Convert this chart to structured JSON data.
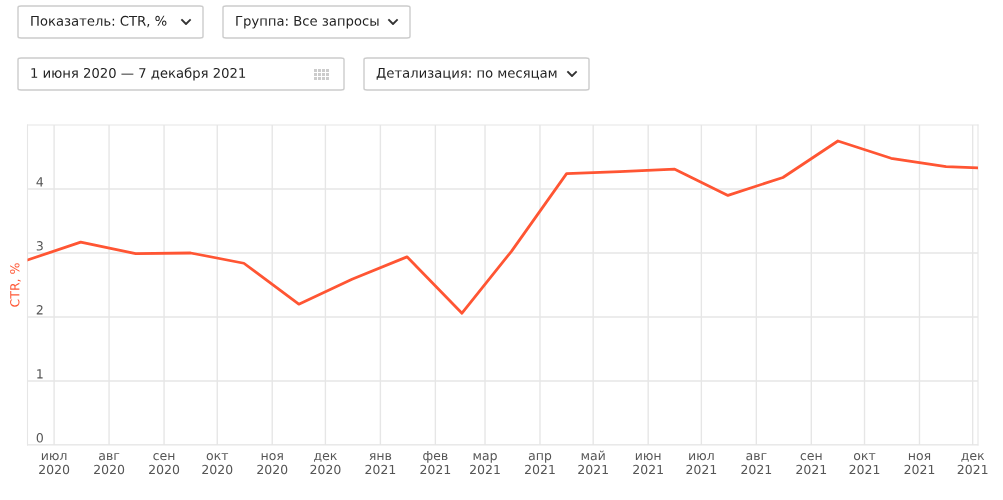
{
  "chart_data": {
    "type": "line",
    "annotations": [
      "Показатель: CTR, %",
      "Группа: Все запросы",
      "1 июня 2020 — 7 декабря 2021",
      "Детализация: по месяцам"
    ],
    "ylabel": "CTR, %",
    "x": [
      "2020-06-16",
      "2020-07-16",
      "2020-08-16",
      "2020-09-16",
      "2020-10-16",
      "2020-11-16",
      "2020-12-16",
      "2021-01-16",
      "2021-02-16",
      "2021-03-16",
      "2021-04-16",
      "2021-05-16",
      "2021-06-16",
      "2021-07-16",
      "2021-08-16",
      "2021-09-16",
      "2021-10-16",
      "2021-11-16",
      "2021-12-04"
    ],
    "series": [
      {
        "color": "#ff5533",
        "values": [
          2.89,
          3.17,
          2.99,
          3.0,
          2.84,
          2.2,
          2.59,
          2.94,
          2.06,
          3.03,
          4.24,
          4.27,
          4.31,
          3.9,
          4.18,
          4.75,
          4.48,
          4.35,
          4.33
        ]
      }
    ],
    "xlim": [
      "2020-06-16",
      "2021-12-04"
    ],
    "xticks": [
      {
        "value": "2020-07-01",
        "label": "июл\n2020"
      },
      {
        "value": "2020-08-01",
        "label": "авг\n2020"
      },
      {
        "value": "2020-09-01",
        "label": "сен\n2020"
      },
      {
        "value": "2020-10-01",
        "label": "окт\n2020"
      },
      {
        "value": "2020-11-01",
        "label": "ноя\n2020"
      },
      {
        "value": "2020-12-01",
        "label": "дек\n2020"
      },
      {
        "value": "2021-01-01",
        "label": "янв\n2021"
      },
      {
        "value": "2021-02-01",
        "label": "фев\n2021"
      },
      {
        "value": "2021-03-01",
        "label": "мар\n2021"
      },
      {
        "value": "2021-04-01",
        "label": "апр\n2021"
      },
      {
        "value": "2021-05-01",
        "label": "май\n2021"
      },
      {
        "value": "2021-06-01",
        "label": "июн\n2021"
      },
      {
        "value": "2021-07-01",
        "label": "июл\n2021"
      },
      {
        "value": "2021-08-01",
        "label": "авг\n2021"
      },
      {
        "value": "2021-09-01",
        "label": "сен\n2021"
      },
      {
        "value": "2021-10-01",
        "label": "окт\n2021"
      },
      {
        "value": "2021-11-01",
        "label": "ноя\n2021"
      },
      {
        "value": "2021-12-01",
        "label": "дек\n2021"
      }
    ],
    "ylim": [
      0,
      5
    ],
    "yticks": [
      0,
      1,
      2,
      3,
      4
    ],
    "grid": true
  }
}
